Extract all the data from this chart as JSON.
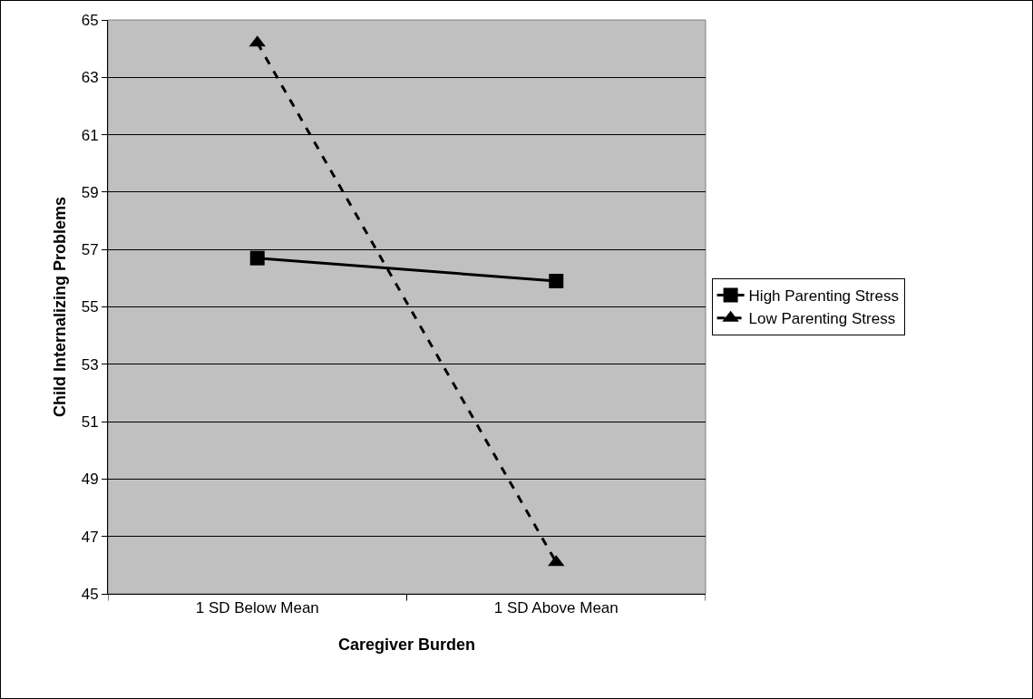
{
  "chart_data": {
    "type": "line",
    "xlabel": "Caregiver Burden",
    "ylabel": "Child Internalizing Problems",
    "categories": [
      "1 SD Below Mean",
      "1 SD Above Mean"
    ],
    "series": [
      {
        "name": "High Parenting Stress",
        "color": "#000000",
        "values": [
          56.7,
          55.9
        ],
        "marker": "square",
        "line_style": "solid"
      },
      {
        "name": "Low Parenting Stress",
        "color": "#000000",
        "values": [
          64.2,
          46.1
        ],
        "marker": "triangle",
        "line_style": "dashed"
      }
    ],
    "ylim": [
      45,
      65
    ],
    "yticks": [
      45,
      47,
      49,
      51,
      53,
      55,
      57,
      59,
      61,
      63,
      65
    ],
    "grid": "y",
    "legend": "right"
  }
}
